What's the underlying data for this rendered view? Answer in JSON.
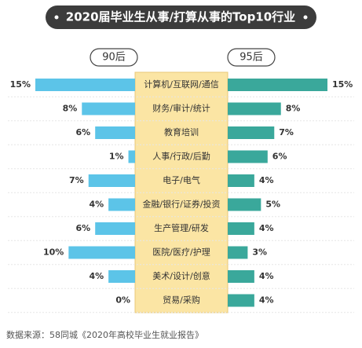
{
  "chart_data": {
    "type": "butterfly",
    "title": "2020届毕业生从事/打算从事的Top10行业",
    "source": "数据来源：58同城《2020年高校毕业生就业报告》",
    "categories": [
      "计算机/互联网/通信",
      "财务/审计/统计",
      "教育培训",
      "人事/行政/后勤",
      "电子/电气",
      "金融/银行/证券/投资",
      "生产管理/研发",
      "医院/医疗/护理",
      "美术/设计/创意",
      "贸易/采购"
    ],
    "series": [
      {
        "name": "90后",
        "color": "#5cc4e8",
        "values": [
          15,
          8,
          6,
          1,
          7,
          4,
          6,
          10,
          4,
          0
        ],
        "value_labels": [
          "15%",
          "8%",
          "6%",
          "1%",
          "7%",
          "4%",
          "6%",
          "10%",
          "4%",
          "0%"
        ]
      },
      {
        "name": "95后",
        "color": "#3aa89b",
        "values": [
          15,
          8,
          7,
          6,
          4,
          5,
          4,
          3,
          4,
          4
        ],
        "value_labels": [
          "15%",
          "8%",
          "7%",
          "6%",
          "4%",
          "5%",
          "4%",
          "3%",
          "4%",
          "4%"
        ]
      }
    ]
  }
}
